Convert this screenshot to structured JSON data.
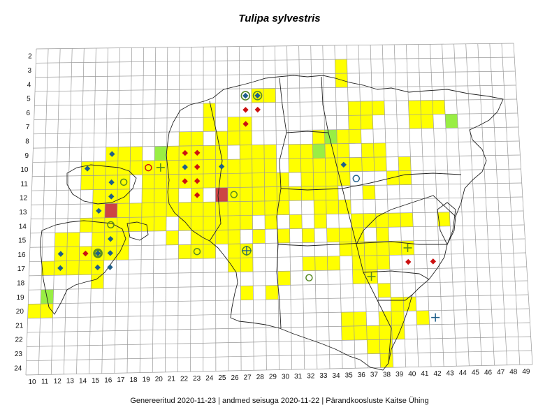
{
  "title": "Tulipa sylvestris",
  "footer": "Genereeritud 2020-11-23  |  andmed seisuga 2020-11-22  |  Pärandkoosluste Kaitse Ühing",
  "colors": {
    "yellow": "#ffff00",
    "green": "#99ee44",
    "red_cell": "#cc4444",
    "grid": "#999999",
    "coast": "#222222",
    "diamond_blue": "#1f5f8b",
    "diamond_red": "#cc1111",
    "symbol_green": "#558822",
    "symbol_blue": "#1f5f8b"
  },
  "row_labels": [
    "2",
    "3",
    "4",
    "5",
    "6",
    "7",
    "8",
    "9",
    "10",
    "11",
    "12",
    "13",
    "14",
    "15",
    "16",
    "17",
    "18",
    "19",
    "20",
    "21",
    "22",
    "23",
    "24"
  ],
  "col_labels": [
    "10",
    "11",
    "12",
    "13",
    "14",
    "15",
    "16",
    "17",
    "18",
    "19",
    "20",
    "21",
    "22",
    "23",
    "24",
    "25",
    "26",
    "27",
    "28",
    "29",
    "30",
    "31",
    "32",
    "33",
    "34",
    "35",
    "36",
    "37",
    "38",
    "39",
    "40",
    "41",
    "42",
    "43",
    "44",
    "45",
    "46",
    "47",
    "48",
    "49"
  ],
  "cells": {
    "yellow": [
      [
        35,
        3
      ],
      [
        35,
        4
      ],
      [
        28,
        5
      ],
      [
        29,
        5
      ],
      [
        36,
        6
      ],
      [
        37,
        6
      ],
      [
        38,
        6
      ],
      [
        41,
        6
      ],
      [
        42,
        6
      ],
      [
        43,
        6
      ],
      [
        24,
        6
      ],
      [
        24,
        7
      ],
      [
        26,
        7
      ],
      [
        27,
        7
      ],
      [
        36,
        7
      ],
      [
        37,
        7
      ],
      [
        41,
        7
      ],
      [
        42,
        7
      ],
      [
        25,
        8
      ],
      [
        26,
        8
      ],
      [
        27,
        8
      ],
      [
        36,
        8
      ],
      [
        33,
        8
      ],
      [
        34,
        8
      ],
      [
        35,
        8
      ],
      [
        22,
        8
      ],
      [
        23,
        8
      ],
      [
        16,
        9
      ],
      [
        17,
        9
      ],
      [
        18,
        9
      ],
      [
        20,
        9
      ],
      [
        21,
        9
      ],
      [
        22,
        9
      ],
      [
        23,
        9
      ],
      [
        24,
        9
      ],
      [
        25,
        9
      ],
      [
        27,
        9
      ],
      [
        28,
        9
      ],
      [
        29,
        9
      ],
      [
        31,
        9
      ],
      [
        32,
        9
      ],
      [
        34,
        9
      ],
      [
        35,
        9
      ],
      [
        37,
        9
      ],
      [
        38,
        9
      ],
      [
        14,
        10
      ],
      [
        15,
        10
      ],
      [
        16,
        10
      ],
      [
        17,
        10
      ],
      [
        18,
        10
      ],
      [
        19,
        10
      ],
      [
        20,
        10
      ],
      [
        21,
        10
      ],
      [
        22,
        10
      ],
      [
        23,
        10
      ],
      [
        24,
        10
      ],
      [
        25,
        10
      ],
      [
        26,
        10
      ],
      [
        27,
        10
      ],
      [
        28,
        10
      ],
      [
        29,
        10
      ],
      [
        31,
        10
      ],
      [
        32,
        10
      ],
      [
        33,
        10
      ],
      [
        34,
        10
      ],
      [
        35,
        10
      ],
      [
        36,
        10
      ],
      [
        37,
        10
      ],
      [
        38,
        10
      ],
      [
        40,
        10
      ],
      [
        14,
        11
      ],
      [
        15,
        11
      ],
      [
        16,
        11
      ],
      [
        17,
        11
      ],
      [
        19,
        11
      ],
      [
        20,
        11
      ],
      [
        21,
        11
      ],
      [
        22,
        11
      ],
      [
        23,
        11
      ],
      [
        24,
        11
      ],
      [
        25,
        11
      ],
      [
        26,
        11
      ],
      [
        27,
        11
      ],
      [
        28,
        11
      ],
      [
        29,
        11
      ],
      [
        30,
        11
      ],
      [
        32,
        11
      ],
      [
        33,
        11
      ],
      [
        34,
        11
      ],
      [
        35,
        11
      ],
      [
        39,
        11
      ],
      [
        40,
        11
      ],
      [
        15,
        12
      ],
      [
        16,
        12
      ],
      [
        17,
        12
      ],
      [
        19,
        12
      ],
      [
        20,
        12
      ],
      [
        21,
        12
      ],
      [
        23,
        12
      ],
      [
        25,
        12
      ],
      [
        26,
        12
      ],
      [
        27,
        12
      ],
      [
        28,
        12
      ],
      [
        29,
        12
      ],
      [
        30,
        12
      ],
      [
        31,
        12
      ],
      [
        32,
        12
      ],
      [
        33,
        12
      ],
      [
        34,
        12
      ],
      [
        37,
        12
      ],
      [
        15,
        13
      ],
      [
        17,
        13
      ],
      [
        18,
        13
      ],
      [
        19,
        13
      ],
      [
        20,
        13
      ],
      [
        21,
        13
      ],
      [
        22,
        13
      ],
      [
        23,
        13
      ],
      [
        24,
        13
      ],
      [
        25,
        13
      ],
      [
        26,
        13
      ],
      [
        27,
        13
      ],
      [
        28,
        13
      ],
      [
        29,
        13
      ],
      [
        30,
        13
      ],
      [
        33,
        13
      ],
      [
        34,
        13
      ],
      [
        35,
        13
      ],
      [
        14,
        14
      ],
      [
        15,
        14
      ],
      [
        16,
        14
      ],
      [
        17,
        14
      ],
      [
        18,
        14
      ],
      [
        19,
        14
      ],
      [
        20,
        14
      ],
      [
        22,
        14
      ],
      [
        23,
        14
      ],
      [
        24,
        14
      ],
      [
        25,
        14
      ],
      [
        26,
        14
      ],
      [
        27,
        14
      ],
      [
        29,
        14
      ],
      [
        31,
        14
      ],
      [
        33,
        14
      ],
      [
        36,
        14
      ],
      [
        37,
        14
      ],
      [
        38,
        14
      ],
      [
        39,
        14
      ],
      [
        40,
        14
      ],
      [
        43,
        14
      ],
      [
        12,
        15
      ],
      [
        13,
        15
      ],
      [
        15,
        15
      ],
      [
        16,
        15
      ],
      [
        17,
        15
      ],
      [
        21,
        15
      ],
      [
        23,
        15
      ],
      [
        24,
        15
      ],
      [
        25,
        15
      ],
      [
        26,
        15
      ],
      [
        28,
        15
      ],
      [
        30,
        15
      ],
      [
        32,
        15
      ],
      [
        34,
        15
      ],
      [
        35,
        15
      ],
      [
        36,
        15
      ],
      [
        38,
        15
      ],
      [
        12,
        16
      ],
      [
        13,
        16
      ],
      [
        14,
        16
      ],
      [
        15,
        16
      ],
      [
        16,
        16
      ],
      [
        17,
        16
      ],
      [
        22,
        16
      ],
      [
        23,
        16
      ],
      [
        24,
        16
      ],
      [
        26,
        16
      ],
      [
        27,
        16
      ],
      [
        35,
        16
      ],
      [
        36,
        16
      ],
      [
        37,
        16
      ],
      [
        38,
        16
      ],
      [
        39,
        16
      ],
      [
        40,
        16
      ],
      [
        11,
        17
      ],
      [
        12,
        17
      ],
      [
        13,
        17
      ],
      [
        14,
        17
      ],
      [
        15,
        17
      ],
      [
        26,
        17
      ],
      [
        27,
        17
      ],
      [
        32,
        17
      ],
      [
        33,
        17
      ],
      [
        34,
        17
      ],
      [
        36,
        17
      ],
      [
        37,
        17
      ],
      [
        38,
        17
      ],
      [
        15,
        18
      ],
      [
        30,
        18
      ],
      [
        36,
        18
      ],
      [
        37,
        18
      ],
      [
        11,
        19
      ],
      [
        27,
        19
      ],
      [
        29,
        19
      ],
      [
        38,
        19
      ],
      [
        10,
        20
      ],
      [
        11,
        20
      ],
      [
        39,
        20
      ],
      [
        40,
        20
      ],
      [
        35,
        21
      ],
      [
        36,
        21
      ],
      [
        38,
        21
      ],
      [
        39,
        21
      ],
      [
        41,
        21
      ],
      [
        35,
        22
      ],
      [
        36,
        22
      ],
      [
        37,
        22
      ],
      [
        38,
        22
      ],
      [
        39,
        22
      ],
      [
        37,
        23
      ],
      [
        38,
        23
      ],
      [
        38,
        24
      ]
    ],
    "green": [
      [
        20,
        9
      ],
      [
        33,
        9
      ],
      [
        34,
        8
      ],
      [
        44,
        7
      ],
      [
        11,
        19
      ]
    ],
    "red": [
      [
        16,
        13
      ],
      [
        25,
        12
      ]
    ]
  },
  "markers": [
    {
      "type": "diamond",
      "color": "blue",
      "col": 16,
      "row": 9
    },
    {
      "type": "diamond",
      "color": "blue",
      "col": 14,
      "row": 10
    },
    {
      "type": "diamond",
      "color": "blue",
      "col": 16,
      "row": 11
    },
    {
      "type": "diamond",
      "color": "blue",
      "col": 16,
      "row": 12
    },
    {
      "type": "diamond",
      "color": "blue",
      "col": 15,
      "row": 13
    },
    {
      "type": "diamond",
      "color": "blue",
      "col": 16,
      "row": 15
    },
    {
      "type": "diamond",
      "color": "blue",
      "col": 12,
      "row": 16
    },
    {
      "type": "diamond",
      "color": "blue",
      "col": 12,
      "row": 17
    },
    {
      "type": "diamond",
      "color": "blue",
      "col": 15,
      "row": 17
    },
    {
      "type": "diamond",
      "color": "blue",
      "col": 16,
      "row": 16
    },
    {
      "type": "diamond",
      "color": "blue",
      "col": 22,
      "row": 10
    },
    {
      "type": "diamond",
      "color": "blue",
      "col": 25,
      "row": 10
    },
    {
      "type": "diamond",
      "color": "blue",
      "col": 35,
      "row": 10
    },
    {
      "type": "diamond",
      "color": "red",
      "col": 27,
      "row": 6
    },
    {
      "type": "diamond",
      "color": "red",
      "col": 28,
      "row": 6
    },
    {
      "type": "diamond",
      "color": "red",
      "col": 27,
      "row": 7
    },
    {
      "type": "diamond",
      "color": "red",
      "col": 22,
      "row": 9
    },
    {
      "type": "diamond",
      "color": "red",
      "col": 23,
      "row": 9
    },
    {
      "type": "diamond",
      "color": "red",
      "col": 23,
      "row": 10
    },
    {
      "type": "diamond",
      "color": "red",
      "col": 22,
      "row": 11
    },
    {
      "type": "diamond",
      "color": "red",
      "col": 23,
      "row": 11
    },
    {
      "type": "diamond",
      "color": "red",
      "col": 23,
      "row": 12
    },
    {
      "type": "diamond",
      "color": "red",
      "col": 14,
      "row": 16
    },
    {
      "type": "diamond",
      "color": "red",
      "col": 40,
      "row": 17
    },
    {
      "type": "diamond",
      "color": "red",
      "col": 42,
      "row": 17
    },
    {
      "type": "diamond-ring",
      "color": "blue",
      "col": 27,
      "row": 5
    },
    {
      "type": "diamond-ring",
      "color": "blue",
      "col": 28,
      "row": 5
    },
    {
      "type": "diamond-ring",
      "color": "blue",
      "col": 15,
      "row": 16
    },
    {
      "type": "circle",
      "color": "green",
      "col": 17,
      "row": 11
    },
    {
      "type": "circle",
      "color": "green",
      "col": 26,
      "row": 12
    },
    {
      "type": "circle",
      "color": "green",
      "col": 16,
      "row": 14
    },
    {
      "type": "circle",
      "color": "green",
      "col": 23,
      "row": 16
    },
    {
      "type": "circle",
      "color": "green",
      "col": 32,
      "row": 18
    },
    {
      "type": "circle",
      "color": "blue",
      "col": 36,
      "row": 11
    },
    {
      "type": "circle",
      "color": "red",
      "col": 19,
      "row": 10
    },
    {
      "type": "circle",
      "color": "green",
      "col": 15,
      "row": 16
    },
    {
      "type": "circle-plus",
      "color": "green",
      "col": 27,
      "row": 16
    },
    {
      "type": "plus",
      "color": "green",
      "col": 40,
      "row": 16
    },
    {
      "type": "plus",
      "color": "green",
      "col": 37,
      "row": 18
    },
    {
      "type": "plus",
      "color": "blue",
      "col": 42,
      "row": 21
    },
    {
      "type": "plus",
      "color": "green",
      "col": 20,
      "row": 10
    },
    {
      "type": "diamond",
      "color": "blue",
      "col": 16,
      "row": 17
    }
  ]
}
